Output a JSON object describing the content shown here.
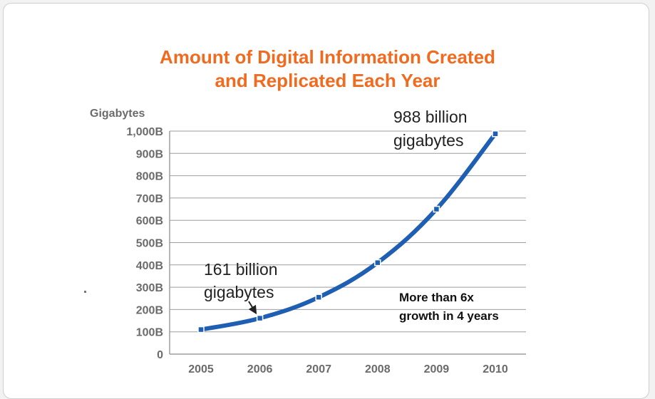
{
  "chart_data": {
    "type": "line",
    "title_lines": [
      "Amount of Digital Information Created",
      "and Replicated Each Year"
    ],
    "ylabel": "Gigabytes",
    "xlabel": "",
    "categories": [
      "2005",
      "2006",
      "2007",
      "2008",
      "2009",
      "2010"
    ],
    "series": [
      {
        "values": [
          110,
          161,
          255,
          410,
          650,
          988
        ]
      }
    ],
    "yticks": [
      "0",
      "100B",
      "200B",
      "300B",
      "400B",
      "500B",
      "600B",
      "700B",
      "800B",
      "900B",
      "1,000B"
    ],
    "ylim": [
      0,
      1000
    ],
    "grid": true,
    "annotations": [
      {
        "lines": [
          "988 billion",
          "gigabytes"
        ],
        "category": "2010"
      },
      {
        "lines": [
          "161 billion",
          "gigabytes"
        ],
        "category": "2006"
      },
      {
        "lines": [
          "More than 6x",
          "growth in 4 years"
        ]
      }
    ],
    "colors": {
      "line": "#1f5fb3",
      "title": "#f06b1f",
      "grid": "#9e9e9e"
    }
  }
}
